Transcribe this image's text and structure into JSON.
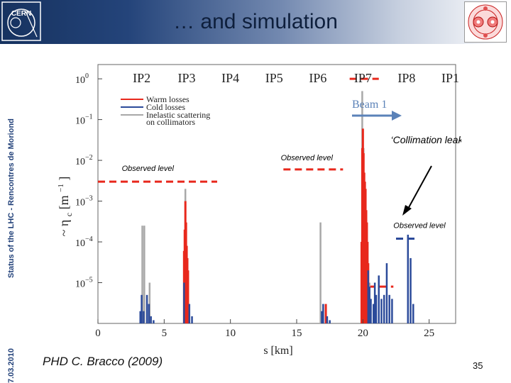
{
  "slide": {
    "title": "… and simulation",
    "sidebar_text": "Status of the LHC - Rencontres de Moriond",
    "sidebar_date": "7.03.2010",
    "footer_credit": "PHD C. Bracco (2009)",
    "page_number": "35",
    "logo_text": "CERN",
    "colors": {
      "header_dark": "#16325f",
      "header_light": "#ffffff",
      "sidebar_text": "#23427a"
    }
  },
  "chart_data": {
    "type": "bar",
    "xlabel": "s [km]",
    "ylabel": "η",
    "ylabel_sub": "c",
    "ylabel_unit": "[m",
    "ylabel_unit_sup": "−1",
    "ylabel_close": "]",
    "ylabel_tilde": "~",
    "xlim": [
      0,
      27
    ],
    "ylim_log10": [
      -6,
      0.35
    ],
    "x_ticks": [
      0,
      5,
      10,
      15,
      20,
      25
    ],
    "x_tick_labels": [
      "0",
      "5",
      "10",
      "15",
      "20",
      "25"
    ],
    "y_ticks_log10": [
      0,
      -1,
      -2,
      -3,
      -4,
      -5
    ],
    "y_tick_base": "10",
    "y_tick_exponents": [
      "0",
      "−1",
      "−2",
      "−3",
      "−4",
      "−5"
    ],
    "ip_labels": [
      {
        "name": "IP2",
        "x": 3.3
      },
      {
        "name": "IP3",
        "x": 6.7
      },
      {
        "name": "IP4",
        "x": 10.0
      },
      {
        "name": "IP5",
        "x": 13.3
      },
      {
        "name": "IP6",
        "x": 16.6
      },
      {
        "name": "IP7",
        "x": 20.0
      },
      {
        "name": "IP8",
        "x": 23.3
      },
      {
        "name": "IP1",
        "x": 26.6
      }
    ],
    "beam_label": "Beam 1",
    "legend": [
      {
        "name": "Warm losses",
        "color": "#e8281c"
      },
      {
        "name": "Cold losses",
        "color": "#2b4a9a"
      },
      {
        "name": "Inelastic scattering",
        "name2": "on collimators",
        "color": "#a8a8a8"
      }
    ],
    "series": [
      {
        "name": "Inelastic scattering on collimators",
        "color": "#a8a8a8",
        "points": [
          [
            3.35,
            0.00025
          ],
          [
            3.5,
            0.00025
          ],
          [
            3.9,
            1e-05
          ],
          [
            6.6,
            0.002
          ],
          [
            16.8,
            0.0003
          ],
          [
            19.95,
            0.5
          ],
          [
            20.05,
            0.02
          ],
          [
            20.3,
            0.0002
          ],
          [
            20.5,
            1e-05
          ]
        ]
      },
      {
        "name": "Warm losses",
        "color": "#e8281c",
        "points": [
          [
            6.5,
            6e-05
          ],
          [
            6.55,
            0.0002
          ],
          [
            6.6,
            0.001
          ],
          [
            6.65,
            0.0003
          ],
          [
            6.7,
            8e-05
          ],
          [
            6.75,
            4e-05
          ],
          [
            6.8,
            2e-05
          ],
          [
            17.1,
            1e-06
          ],
          [
            17.2,
            3e-06
          ],
          [
            19.9,
            0.0001
          ],
          [
            19.95,
            0.02
          ],
          [
            20.0,
            0.06
          ],
          [
            20.05,
            0.015
          ],
          [
            20.1,
            0.005
          ],
          [
            20.15,
            0.003
          ],
          [
            20.2,
            0.002
          ],
          [
            20.25,
            0.0006
          ],
          [
            20.3,
            0.0003
          ],
          [
            20.35,
            0.0001
          ],
          [
            20.4,
            3e-05
          ]
        ]
      },
      {
        "name": "Cold losses",
        "color": "#2b4a9a",
        "points": [
          [
            3.2,
            2e-06
          ],
          [
            3.3,
            5e-06
          ],
          [
            3.45,
            2e-06
          ],
          [
            3.7,
            5e-06
          ],
          [
            3.85,
            3e-06
          ],
          [
            4.0,
            1.5e-06
          ],
          [
            4.2,
            1.2e-06
          ],
          [
            6.5,
            1e-05
          ],
          [
            6.9,
            3e-06
          ],
          [
            7.1,
            1.5e-06
          ],
          [
            16.9,
            2e-06
          ],
          [
            17.0,
            3e-06
          ],
          [
            17.3,
            1.5e-06
          ],
          [
            17.5,
            1.2e-06
          ],
          [
            20.4,
            2e-05
          ],
          [
            20.5,
            8e-06
          ],
          [
            20.6,
            4e-06
          ],
          [
            20.8,
            3e-06
          ],
          [
            20.9,
            1e-05
          ],
          [
            21.0,
            5e-06
          ],
          [
            21.2,
            1.5e-05
          ],
          [
            21.4,
            4e-06
          ],
          [
            21.6,
            5e-06
          ],
          [
            21.8,
            3e-05
          ],
          [
            22.0,
            5e-06
          ],
          [
            22.2,
            4e-06
          ],
          [
            23.4,
            0.00015
          ],
          [
            23.6,
            4e-05
          ],
          [
            23.8,
            3e-06
          ]
        ]
      }
    ],
    "annotations": [
      {
        "text": "Observed level",
        "x": 1.8,
        "y": 0.0055
      },
      {
        "text": "Observed level",
        "x": 13.8,
        "y": 0.01
      },
      {
        "text": "Observed level",
        "x": 22.3,
        "y": 0.00022
      },
      {
        "text": "‘Collimation leaks’",
        "x": 22.1,
        "y": 0.026
      }
    ],
    "observed_levels": [
      {
        "x_start": 0.0,
        "x_end": 9.0,
        "y": 0.003,
        "color": "#e8281c"
      },
      {
        "x_start": 14.0,
        "x_end": 18.5,
        "y": 0.006,
        "color": "#e8281c"
      },
      {
        "x_start": 19.0,
        "x_end": 21.2,
        "y": 1.0,
        "color": "#e8281c"
      },
      {
        "x_start": 20.4,
        "x_end": 22.3,
        "y": 8e-06,
        "color": "#e8281c"
      },
      {
        "x_start": 22.5,
        "x_end": 24.0,
        "y": 0.00012,
        "color": "#2b4a9a"
      }
    ]
  }
}
